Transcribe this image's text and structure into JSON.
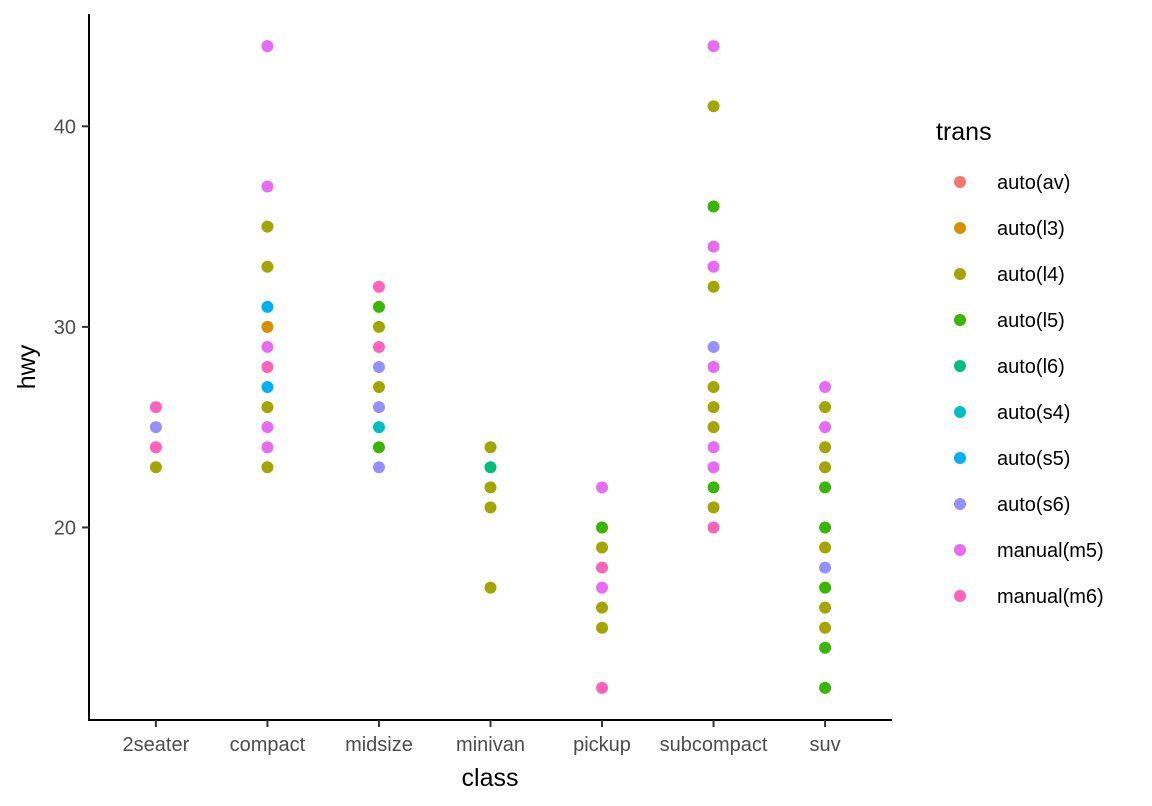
{
  "chart_data": {
    "type": "scatter",
    "xlabel": "class",
    "ylabel": "hwy",
    "categories": [
      "2seater",
      "compact",
      "midsize",
      "minivan",
      "pickup",
      "subcompact",
      "suv"
    ],
    "yticks": [
      20,
      30,
      40
    ],
    "ylim": [
      10.4,
      45.6
    ],
    "grid": false,
    "legend": {
      "title": "trans",
      "placement": "right",
      "entries": [
        {
          "name": "auto(av)",
          "color": "#F8766D"
        },
        {
          "name": "auto(l3)",
          "color": "#D89000"
        },
        {
          "name": "auto(l4)",
          "color": "#A3A500"
        },
        {
          "name": "auto(l5)",
          "color": "#39B600"
        },
        {
          "name": "auto(l6)",
          "color": "#00BF7D"
        },
        {
          "name": "auto(s4)",
          "color": "#00BFC4"
        },
        {
          "name": "auto(s5)",
          "color": "#00B0F6"
        },
        {
          "name": "auto(s6)",
          "color": "#9590FF"
        },
        {
          "name": "manual(m5)",
          "color": "#E76BF3"
        },
        {
          "name": "manual(m6)",
          "color": "#FF62BC"
        }
      ]
    },
    "points": [
      {
        "x": "2seater",
        "y": 26,
        "trans": "manual(m6)"
      },
      {
        "x": "2seater",
        "y": 25,
        "trans": "auto(s6)"
      },
      {
        "x": "2seater",
        "y": 24,
        "trans": "manual(m6)"
      },
      {
        "x": "2seater",
        "y": 23,
        "trans": "auto(l4)"
      },
      {
        "x": "compact",
        "y": 44,
        "trans": "manual(m5)"
      },
      {
        "x": "compact",
        "y": 37,
        "trans": "manual(m5)"
      },
      {
        "x": "compact",
        "y": 35,
        "trans": "auto(l4)"
      },
      {
        "x": "compact",
        "y": 33,
        "trans": "auto(l4)"
      },
      {
        "x": "compact",
        "y": 31,
        "trans": "auto(s5)"
      },
      {
        "x": "compact",
        "y": 30,
        "trans": "auto(l3)"
      },
      {
        "x": "compact",
        "y": 29,
        "trans": "manual(m5)"
      },
      {
        "x": "compact",
        "y": 28,
        "trans": "manual(m6)"
      },
      {
        "x": "compact",
        "y": 27,
        "trans": "auto(s5)"
      },
      {
        "x": "compact",
        "y": 26,
        "trans": "auto(l4)"
      },
      {
        "x": "compact",
        "y": 25,
        "trans": "manual(m5)"
      },
      {
        "x": "compact",
        "y": 24,
        "trans": "manual(m5)"
      },
      {
        "x": "compact",
        "y": 23,
        "trans": "auto(l4)"
      },
      {
        "x": "midsize",
        "y": 32,
        "trans": "manual(m6)"
      },
      {
        "x": "midsize",
        "y": 31,
        "trans": "auto(l5)"
      },
      {
        "x": "midsize",
        "y": 30,
        "trans": "auto(l4)"
      },
      {
        "x": "midsize",
        "y": 29,
        "trans": "manual(m6)"
      },
      {
        "x": "midsize",
        "y": 28,
        "trans": "auto(s6)"
      },
      {
        "x": "midsize",
        "y": 27,
        "trans": "auto(l4)"
      },
      {
        "x": "midsize",
        "y": 26,
        "trans": "auto(s6)"
      },
      {
        "x": "midsize",
        "y": 25,
        "trans": "auto(s4)"
      },
      {
        "x": "midsize",
        "y": 24,
        "trans": "auto(l5)"
      },
      {
        "x": "midsize",
        "y": 23,
        "trans": "auto(s6)"
      },
      {
        "x": "minivan",
        "y": 24,
        "trans": "auto(l4)"
      },
      {
        "x": "minivan",
        "y": 23,
        "trans": "auto(l6)"
      },
      {
        "x": "minivan",
        "y": 22,
        "trans": "auto(l4)"
      },
      {
        "x": "minivan",
        "y": 21,
        "trans": "auto(l4)"
      },
      {
        "x": "minivan",
        "y": 17,
        "trans": "auto(l4)"
      },
      {
        "x": "pickup",
        "y": 22,
        "trans": "manual(m5)"
      },
      {
        "x": "pickup",
        "y": 20,
        "trans": "auto(l5)"
      },
      {
        "x": "pickup",
        "y": 19,
        "trans": "auto(l4)"
      },
      {
        "x": "pickup",
        "y": 18,
        "trans": "manual(m6)"
      },
      {
        "x": "pickup",
        "y": 17,
        "trans": "manual(m5)"
      },
      {
        "x": "pickup",
        "y": 16,
        "trans": "auto(l4)"
      },
      {
        "x": "pickup",
        "y": 15,
        "trans": "auto(l4)"
      },
      {
        "x": "pickup",
        "y": 12,
        "trans": "manual(m6)"
      },
      {
        "x": "subcompact",
        "y": 44,
        "trans": "manual(m5)"
      },
      {
        "x": "subcompact",
        "y": 41,
        "trans": "auto(l4)"
      },
      {
        "x": "subcompact",
        "y": 36,
        "trans": "auto(l5)"
      },
      {
        "x": "subcompact",
        "y": 34,
        "trans": "manual(m5)"
      },
      {
        "x": "subcompact",
        "y": 33,
        "trans": "manual(m5)"
      },
      {
        "x": "subcompact",
        "y": 32,
        "trans": "auto(l4)"
      },
      {
        "x": "subcompact",
        "y": 29,
        "trans": "auto(s6)"
      },
      {
        "x": "subcompact",
        "y": 28,
        "trans": "manual(m5)"
      },
      {
        "x": "subcompact",
        "y": 27,
        "trans": "auto(l4)"
      },
      {
        "x": "subcompact",
        "y": 26,
        "trans": "auto(l4)"
      },
      {
        "x": "subcompact",
        "y": 25,
        "trans": "auto(l4)"
      },
      {
        "x": "subcompact",
        "y": 24,
        "trans": "manual(m5)"
      },
      {
        "x": "subcompact",
        "y": 23,
        "trans": "manual(m5)"
      },
      {
        "x": "subcompact",
        "y": 22,
        "trans": "auto(l5)"
      },
      {
        "x": "subcompact",
        "y": 21,
        "trans": "auto(l4)"
      },
      {
        "x": "subcompact",
        "y": 20,
        "trans": "manual(m6)"
      },
      {
        "x": "suv",
        "y": 27,
        "trans": "manual(m5)"
      },
      {
        "x": "suv",
        "y": 26,
        "trans": "auto(l4)"
      },
      {
        "x": "suv",
        "y": 25,
        "trans": "manual(m5)"
      },
      {
        "x": "suv",
        "y": 24,
        "trans": "auto(l4)"
      },
      {
        "x": "suv",
        "y": 23,
        "trans": "auto(l4)"
      },
      {
        "x": "suv",
        "y": 22,
        "trans": "auto(l5)"
      },
      {
        "x": "suv",
        "y": 20,
        "trans": "auto(l5)"
      },
      {
        "x": "suv",
        "y": 19,
        "trans": "auto(l4)"
      },
      {
        "x": "suv",
        "y": 18,
        "trans": "auto(s6)"
      },
      {
        "x": "suv",
        "y": 17,
        "trans": "auto(l5)"
      },
      {
        "x": "suv",
        "y": 16,
        "trans": "auto(l4)"
      },
      {
        "x": "suv",
        "y": 15,
        "trans": "auto(l4)"
      },
      {
        "x": "suv",
        "y": 14,
        "trans": "auto(l5)"
      },
      {
        "x": "suv",
        "y": 12,
        "trans": "auto(l5)"
      }
    ]
  }
}
